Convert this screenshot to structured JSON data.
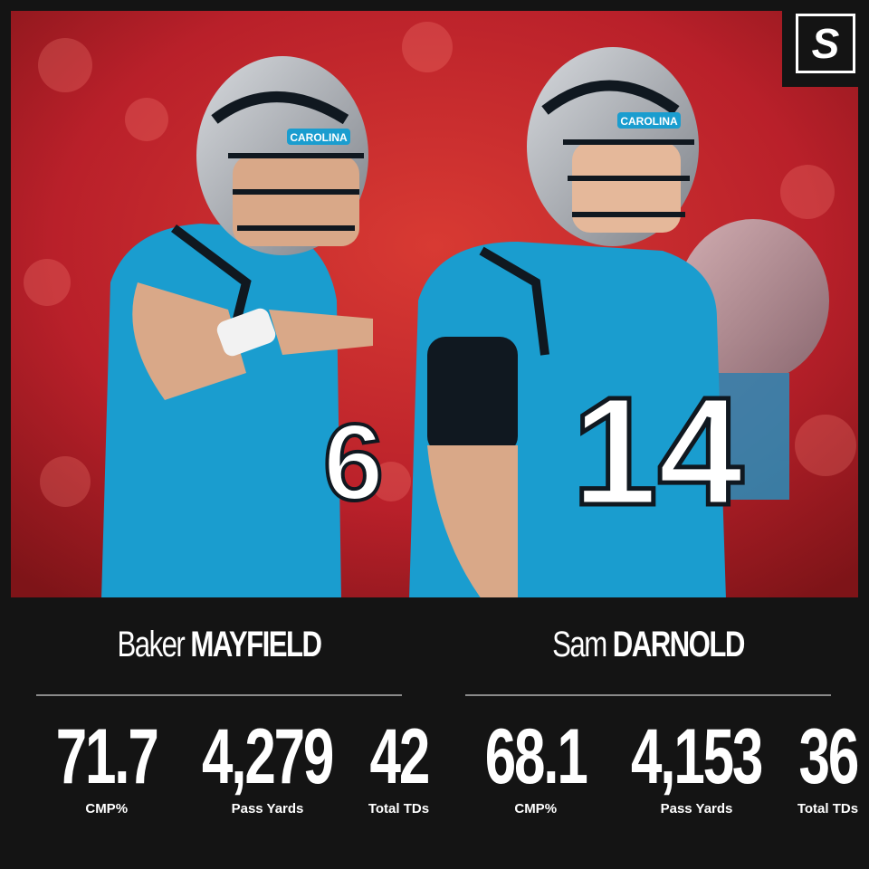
{
  "brand": {
    "logo_letter": "S"
  },
  "photo": {
    "description_icon": "photo-two-carolina-quarterbacks",
    "helmet_text": "CAROLINA",
    "jersey_left": "6",
    "jersey_right": "14",
    "colors": {
      "jersey": "#1a9dcf",
      "stadium": "#c9262b",
      "helmet": "#a9adb3"
    }
  },
  "players": [
    {
      "first": "Baker",
      "last": "MAYFIELD",
      "stats": [
        {
          "value": "71.7",
          "label": "CMP%"
        },
        {
          "value": "4,279",
          "label": "Pass Yards"
        },
        {
          "value": "42",
          "label": "Total TDs"
        }
      ]
    },
    {
      "first": "Sam",
      "last": "DARNOLD",
      "stats": [
        {
          "value": "68.1",
          "label": "CMP%"
        },
        {
          "value": "4,153",
          "label": "Pass Yards"
        },
        {
          "value": "36",
          "label": "Total TDs"
        }
      ]
    }
  ]
}
